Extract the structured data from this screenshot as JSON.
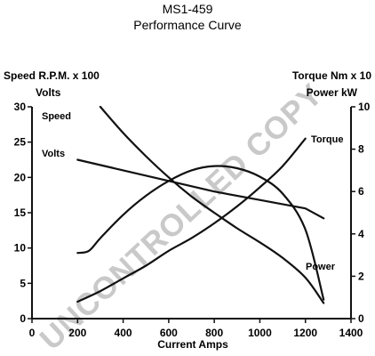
{
  "chart_data": {
    "type": "line",
    "title": "MS1-459",
    "subtitle": "Performance Curve",
    "xlabel": "Current Amps",
    "ylabel_left_1": "Speed R.P.M. x 100",
    "ylabel_left_2": "Volts",
    "ylabel_right_1": "Torque Nm x 10",
    "ylabel_right_2": "Power kW",
    "xlim": [
      0,
      1400
    ],
    "ylim_left": [
      0,
      30
    ],
    "ylim_right": [
      0,
      10
    ],
    "x_ticks": [
      "0",
      "200",
      "400",
      "600",
      "800",
      "1000",
      "1200",
      "1400"
    ],
    "y_left_ticks": [
      "0",
      "5",
      "10",
      "15",
      "20",
      "25",
      "30"
    ],
    "y_right_ticks": [
      "0",
      "2",
      "4",
      "6",
      "8",
      "10"
    ],
    "grid": false,
    "watermark": "UNCONTROLLED COPY",
    "series": [
      {
        "name": "Speed",
        "axis": "left",
        "x": [
          300,
          400,
          500,
          600,
          700,
          800,
          900,
          1000,
          1100,
          1200,
          1280
        ],
        "y": [
          30,
          26.3,
          23,
          20,
          17.3,
          15,
          12.8,
          10.8,
          8.6,
          5.8,
          2.2
        ]
      },
      {
        "name": "Volts",
        "axis": "left",
        "x": [
          200,
          400,
          600,
          800,
          1000,
          1200,
          1280
        ],
        "y": [
          22.5,
          21,
          19.5,
          18,
          16.8,
          15.6,
          14.2
        ]
      },
      {
        "name": "Torque",
        "axis": "right",
        "x": [
          200,
          300,
          400,
          500,
          600,
          700,
          800,
          900,
          1000,
          1100,
          1200
        ],
        "y": [
          0.8,
          1.3,
          1.9,
          2.5,
          3.2,
          3.8,
          4.5,
          5.3,
          6.2,
          7.2,
          8.5
        ]
      },
      {
        "name": "Power",
        "axis": "right",
        "x": [
          200,
          250,
          300,
          400,
          500,
          600,
          700,
          800,
          900,
          1000,
          1100,
          1200,
          1280
        ],
        "y": [
          3.1,
          3.2,
          3.8,
          4.9,
          5.8,
          6.5,
          7,
          7.2,
          7.1,
          6.7,
          5.9,
          4.2,
          0.9
        ]
      }
    ],
    "series_label_colors": {
      "line": "#111111",
      "watermark": "#c9c9c9"
    }
  }
}
